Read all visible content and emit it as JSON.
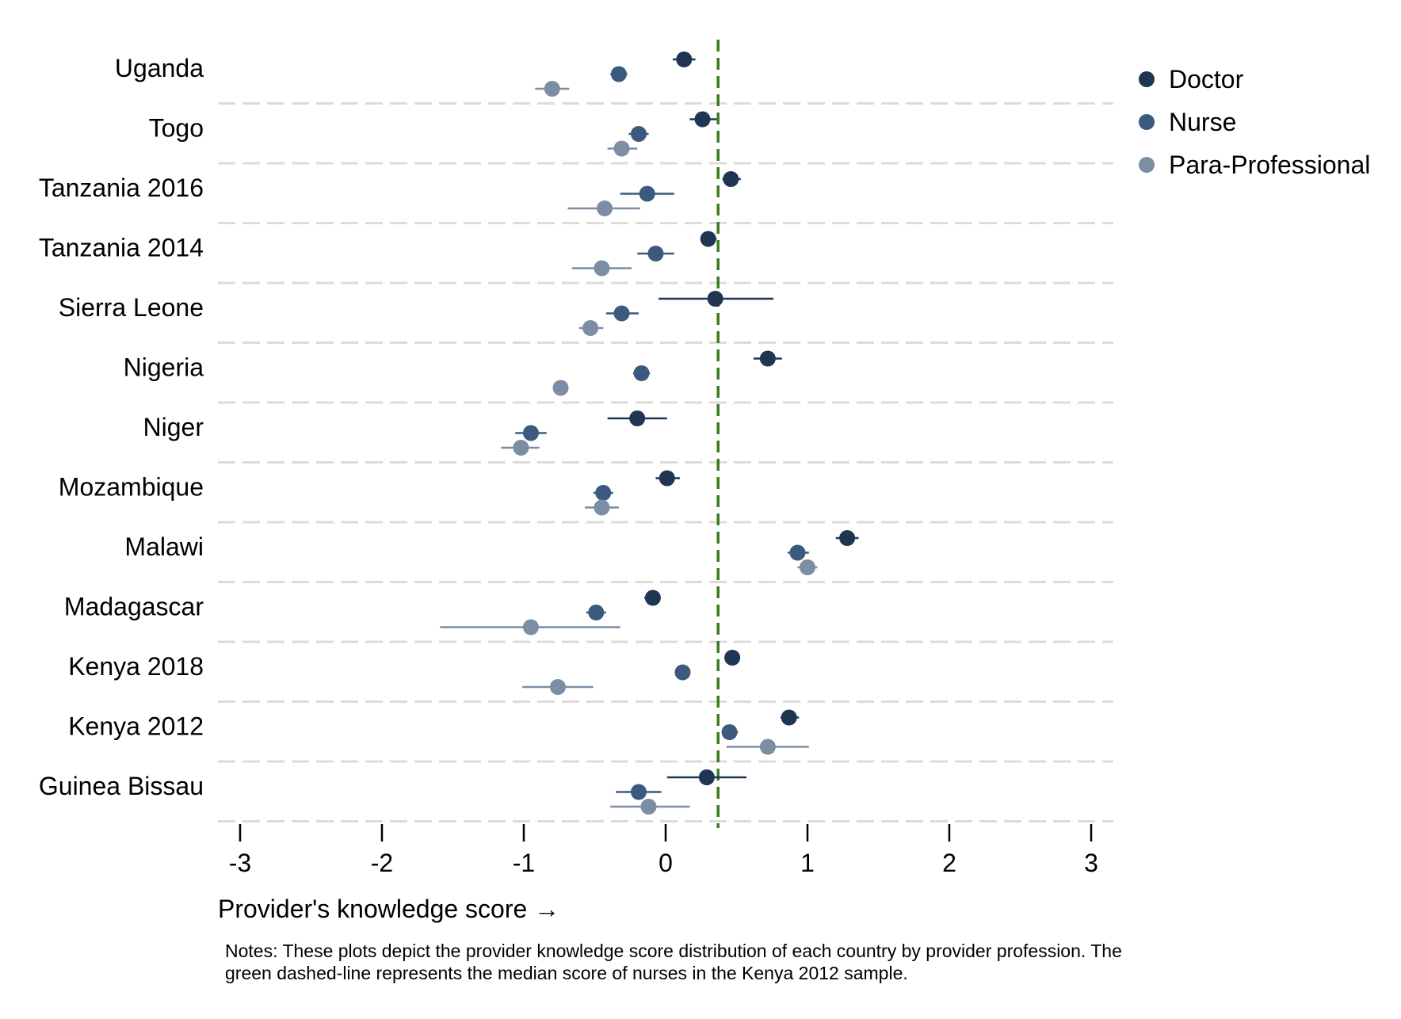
{
  "chart_data": {
    "type": "scatter",
    "subtype": "dot-with-interval",
    "title": "",
    "xlabel": "Provider's knowledge score →",
    "ylabel": "",
    "xlim": [
      -3.35,
      3.25
    ],
    "xticks": [
      -3,
      -2,
      -1,
      0,
      1,
      2,
      3
    ],
    "xtick_labels": [
      "-3",
      "-2",
      "-1",
      "0",
      "1",
      "2",
      "3"
    ],
    "categories": [
      "Uganda",
      "Togo",
      "Tanzania 2016",
      "Tanzania 2014",
      "Sierra Leone",
      "Nigeria",
      "Niger",
      "Mozambique",
      "Malawi",
      "Madagascar",
      "Kenya 2018",
      "Kenya 2012",
      "Guinea Bissau"
    ],
    "reference_line": {
      "x": 0.37,
      "style": "dashed",
      "color": "#3a7d1e"
    },
    "grid": "horizontal dashed separators",
    "legend_position": "top-right",
    "series": [
      {
        "name": "Doctor",
        "color": "#1f3552",
        "values": [
          0.13,
          0.26,
          0.46,
          0.3,
          0.35,
          0.72,
          -0.2,
          0.01,
          1.28,
          -0.09,
          0.47,
          0.87,
          0.29
        ],
        "lower": [
          0.05,
          0.17,
          0.4,
          0.25,
          -0.05,
          0.62,
          -0.41,
          -0.07,
          1.2,
          -0.15,
          0.47,
          0.81,
          0.01
        ],
        "upper": [
          0.21,
          0.36,
          0.53,
          0.36,
          0.76,
          0.82,
          0.01,
          0.1,
          1.36,
          -0.04,
          0.47,
          0.94,
          0.57
        ]
      },
      {
        "name": "Nurse",
        "color": "#3c5a7e",
        "values": [
          -0.33,
          -0.19,
          -0.13,
          -0.07,
          -0.31,
          -0.17,
          -0.95,
          -0.44,
          0.93,
          -0.49,
          0.12,
          0.45,
          -0.19
        ],
        "lower": [
          -0.39,
          -0.26,
          -0.32,
          -0.2,
          -0.42,
          -0.23,
          -1.06,
          -0.51,
          0.86,
          -0.56,
          0.12,
          0.4,
          -0.35
        ],
        "upper": [
          -0.27,
          -0.12,
          0.06,
          0.06,
          -0.19,
          -0.11,
          -0.84,
          -0.37,
          1.01,
          -0.42,
          0.12,
          0.51,
          -0.03
        ]
      },
      {
        "name": "Para-Professional",
        "color": "#7b8ea3",
        "values": [
          -0.8,
          -0.31,
          -0.43,
          -0.45,
          -0.53,
          -0.74,
          -1.02,
          -0.45,
          1.0,
          -0.95,
          -0.76,
          0.72,
          -0.12
        ],
        "lower": [
          -0.92,
          -0.41,
          -0.69,
          -0.66,
          -0.61,
          -0.74,
          -1.16,
          -0.57,
          0.93,
          -1.59,
          -1.01,
          0.43,
          -0.39
        ],
        "upper": [
          -0.68,
          -0.2,
          -0.18,
          -0.24,
          -0.44,
          -0.74,
          -0.89,
          -0.33,
          1.07,
          -0.32,
          -0.51,
          1.01,
          0.17
        ]
      }
    ]
  },
  "notes": {
    "line1": "Notes: These plots depict the provider knowledge score distribution of each country by provider profession. The",
    "line2": " green dashed-line represents the median score of nurses in the Kenya 2012 sample."
  }
}
